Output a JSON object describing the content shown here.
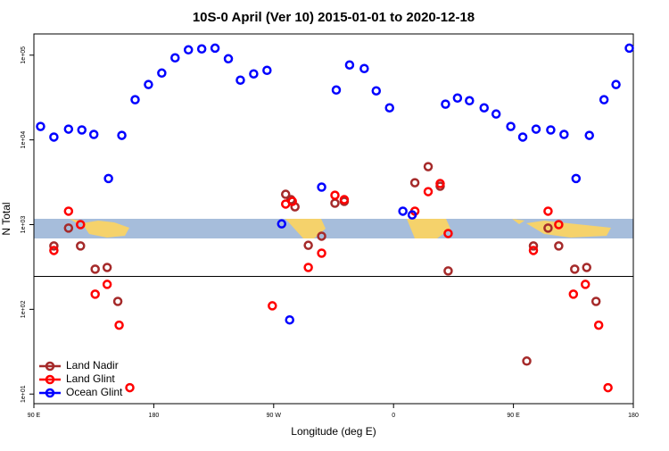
{
  "chart_data": {
    "type": "scatter",
    "title": "10S-0 April (Ver 10)   2015-01-01 to 2020-12-18",
    "x_label": "Longitude (deg E)",
    "y_label": "N Total",
    "xlim": [
      90,
      540
    ],
    "xticks": [
      {
        "value": 90,
        "label": "90 E"
      },
      {
        "value": 180,
        "label": "180"
      },
      {
        "value": 270,
        "label": "90 W"
      },
      {
        "value": 360,
        "label": "0"
      },
      {
        "value": 450,
        "label": "90 E"
      },
      {
        "value": 540,
        "label": "180"
      }
    ],
    "ylim": [
      7.7,
      178000
    ],
    "yticks": [
      {
        "value": 10,
        "label": "1e+01"
      },
      {
        "value": 100,
        "label": "1e+02"
      },
      {
        "value": 1000,
        "label": "1e+03"
      },
      {
        "value": 10000,
        "label": "1e+04"
      },
      {
        "value": 100000,
        "label": "1e+05"
      }
    ],
    "log_y": true,
    "hline": 245,
    "legend": "bottom-left",
    "series": [
      {
        "name": "Land Nadir",
        "color": "#a52a2a",
        "x": [
          105,
          116,
          125,
          136,
          145,
          153,
          279,
          283,
          286,
          296,
          306,
          316,
          323,
          376,
          386,
          395,
          401,
          460,
          465,
          476,
          484,
          496,
          505,
          512
        ],
        "values": [
          560,
          910,
          560,
          298,
          312,
          124,
          2280,
          1970,
          1620,
          570,
          730,
          1790,
          1880,
          3120,
          4830,
          2840,
          284,
          24.5,
          560,
          910,
          560,
          298,
          312,
          124
        ]
      },
      {
        "name": "Land Glint",
        "color": "#ff0000",
        "x": [
          105,
          116,
          125,
          136,
          145,
          154,
          162,
          269,
          279,
          284,
          296,
          306,
          316,
          323,
          376,
          386,
          395,
          401,
          465,
          476,
          484,
          495,
          504,
          514,
          521
        ],
        "values": [
          495,
          1440,
          1000,
          151,
          197,
          65,
          11.9,
          110,
          1750,
          1880,
          312,
          460,
          2220,
          1970,
          1440,
          2450,
          3050,
          785,
          495,
          1440,
          1000,
          151,
          197,
          65,
          11.9
        ]
      },
      {
        "name": "Ocean Glint",
        "color": "#0000ff",
        "x": [
          95,
          105,
          116,
          126,
          135,
          146,
          156,
          166,
          176,
          186,
          196,
          206,
          216,
          226,
          236,
          245,
          255,
          265,
          276,
          282,
          306,
          317,
          327,
          338,
          347,
          357,
          367,
          374,
          399,
          408,
          417,
          428,
          437,
          448,
          457,
          467,
          478,
          488,
          497,
          507,
          518,
          527,
          537
        ],
        "values": [
          14400,
          10800,
          13400,
          13100,
          11600,
          3500,
          11300,
          29800,
          45000,
          61500,
          93000,
          115600,
          118500,
          121000,
          90700,
          50700,
          60100,
          66200,
          1020,
          75,
          2770,
          38800,
          76600,
          69500,
          37900,
          23900,
          1440,
          1300,
          26400,
          31200,
          29000,
          23900,
          20200,
          14400,
          10800,
          13400,
          13100,
          11600,
          3500,
          11300,
          29800,
          45000,
          121000
        ]
      }
    ]
  }
}
